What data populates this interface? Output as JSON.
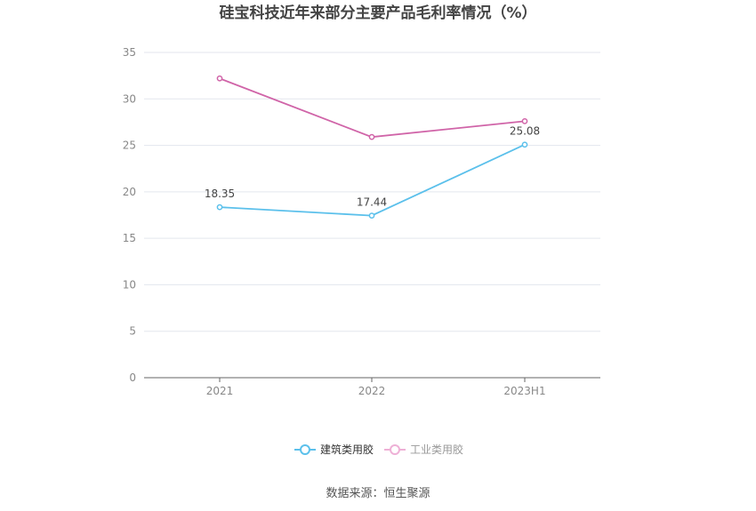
{
  "chart_data": {
    "type": "line",
    "title": "硅宝科技近年来部分主要产品毛利率情况（%）",
    "categories": [
      "2021",
      "2022",
      "2023H1"
    ],
    "series": [
      {
        "name": "建筑类用胶",
        "values": [
          18.35,
          17.44,
          25.08
        ],
        "color": "#5bc0eb",
        "data_labels": [
          "18.35",
          "17.44",
          "25.08"
        ]
      },
      {
        "name": "工业类用胶",
        "values": [
          32.2,
          25.9,
          27.6
        ],
        "color": "#d064a8"
      }
    ],
    "ylim": [
      0,
      35
    ],
    "yticks": [
      "0",
      "5",
      "10",
      "15",
      "20",
      "25",
      "30",
      "35"
    ],
    "grid": true,
    "legend_position": "bottom"
  },
  "source": "数据来源：恒生聚源"
}
